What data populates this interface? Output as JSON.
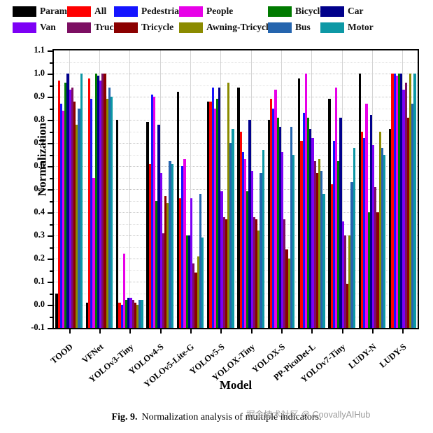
{
  "legend": {
    "items": [
      {
        "label": "Params",
        "color": "#000000"
      },
      {
        "label": "All",
        "color": "#fe0000"
      },
      {
        "label": "Pedestrian",
        "color": "#1414ff"
      },
      {
        "label": "People",
        "color": "#e800e8"
      },
      {
        "label": "Bicycle",
        "color": "#007a00"
      },
      {
        "label": "Car",
        "color": "#00008b"
      },
      {
        "label": "Van",
        "color": "#7d00f5"
      },
      {
        "label": "Truck",
        "color": "#7c0f62"
      },
      {
        "label": "Tricycle",
        "color": "#8b0000"
      },
      {
        "label": "Awning-Tricycle",
        "color": "#8b8b00"
      },
      {
        "label": "Bus",
        "color": "#2565ae"
      },
      {
        "label": "Motor",
        "color": "#0d98a5"
      }
    ]
  },
  "chart_data": {
    "type": "bar",
    "title": "",
    "xlabel": "Model",
    "ylabel": "Normalization",
    "ylim": [
      -0.1,
      1.1
    ],
    "ytick_step": 0.1,
    "yminor_step": 0.05,
    "grid": "horizontal dotted + vertical at group centers",
    "legend_position": "top",
    "bar_baseline": -0.1,
    "categories": [
      "TOOD",
      "VFNet",
      "YOLOv3-Tiny",
      "YOLOv4-S",
      "YOLOv5-Lite-G",
      "YOLOv5-S",
      "YOLOX-Tiny",
      "YOLOX-S",
      "PP-PicoDet-L",
      "YOLOv7-Tiny",
      "LUDY-N",
      "LUDY-S"
    ],
    "series": [
      {
        "name": "Params",
        "color": "#000000",
        "values": [
          0.05,
          0.01,
          0.8,
          0.79,
          0.92,
          0.88,
          0.94,
          0.8,
          0.98,
          0.89,
          1.0,
          0.76
        ]
      },
      {
        "name": "All",
        "color": "#fe0000",
        "values": [
          0.97,
          0.98,
          0.01,
          0.61,
          0.46,
          0.88,
          0.75,
          0.89,
          0.71,
          0.52,
          0.75,
          1.0
        ]
      },
      {
        "name": "Pedestrian",
        "color": "#1414ff",
        "values": [
          0.87,
          0.89,
          0.0,
          0.91,
          0.6,
          0.94,
          0.66,
          0.85,
          0.83,
          0.71,
          0.72,
          1.0
        ]
      },
      {
        "name": "People",
        "color": "#e800e8",
        "values": [
          0.84,
          0.55,
          0.22,
          0.9,
          0.63,
          0.85,
          0.63,
          0.93,
          1.0,
          0.94,
          0.87,
          0.99
        ]
      },
      {
        "name": "Bicycle",
        "color": "#007a00",
        "values": [
          0.96,
          1.0,
          0.02,
          0.45,
          0.3,
          0.89,
          0.49,
          0.81,
          0.81,
          0.62,
          0.4,
          1.0
        ]
      },
      {
        "name": "Car",
        "color": "#00008b",
        "values": [
          1.0,
          0.99,
          0.03,
          0.78,
          0.3,
          0.94,
          0.8,
          0.77,
          0.76,
          0.81,
          0.82,
          1.0
        ]
      },
      {
        "name": "Van",
        "color": "#7d00f5",
        "values": [
          0.93,
          0.97,
          0.03,
          0.57,
          0.46,
          0.49,
          0.58,
          0.66,
          0.72,
          0.36,
          0.69,
          0.93
        ]
      },
      {
        "name": "Truck",
        "color": "#7c0f62",
        "values": [
          0.94,
          1.0,
          0.02,
          0.31,
          0.18,
          0.38,
          0.38,
          0.37,
          0.62,
          0.3,
          0.51,
          0.96
        ]
      },
      {
        "name": "Tricycle",
        "color": "#8b0000",
        "values": [
          0.88,
          1.0,
          0.01,
          0.47,
          0.14,
          0.37,
          0.37,
          0.24,
          0.57,
          0.09,
          0.4,
          0.81
        ]
      },
      {
        "name": "Awning-Tricycle",
        "color": "#8b8b00",
        "values": [
          0.78,
          0.89,
          0.0,
          0.44,
          0.21,
          0.96,
          0.32,
          0.2,
          0.63,
          0.3,
          0.75,
          1.0
        ]
      },
      {
        "name": "Bus",
        "color": "#2565ae",
        "values": [
          0.85,
          0.94,
          0.02,
          0.62,
          0.48,
          0.7,
          0.57,
          0.77,
          0.58,
          0.53,
          0.68,
          0.87
        ]
      },
      {
        "name": "Motor",
        "color": "#0d98a5",
        "values": [
          1.0,
          0.9,
          0.02,
          0.61,
          0.29,
          0.76,
          0.67,
          0.65,
          0.48,
          0.68,
          0.65,
          1.0
        ]
      }
    ]
  },
  "caption": {
    "prefix": "Fig. 9.",
    "text": "Normalization analysis of multiple indicators."
  },
  "watermark": "掘金技术社区 @ CoovallyAIHub"
}
